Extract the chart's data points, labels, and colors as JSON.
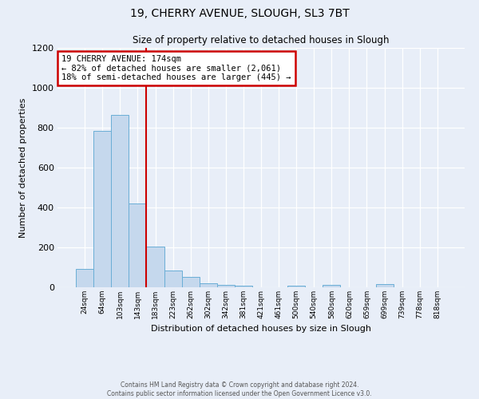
{
  "title": "19, CHERRY AVENUE, SLOUGH, SL3 7BT",
  "subtitle": "Size of property relative to detached houses in Slough",
  "xlabel": "Distribution of detached houses by size in Slough",
  "ylabel": "Number of detached properties",
  "categories": [
    "24sqm",
    "64sqm",
    "103sqm",
    "143sqm",
    "183sqm",
    "223sqm",
    "262sqm",
    "302sqm",
    "342sqm",
    "381sqm",
    "421sqm",
    "461sqm",
    "500sqm",
    "540sqm",
    "580sqm",
    "620sqm",
    "659sqm",
    "699sqm",
    "739sqm",
    "778sqm",
    "818sqm"
  ],
  "values": [
    93,
    783,
    863,
    420,
    203,
    85,
    53,
    20,
    12,
    10,
    0,
    0,
    8,
    0,
    12,
    0,
    0,
    15,
    0,
    0,
    0
  ],
  "bar_color": "#c5d8ed",
  "bar_edge_color": "#6aaed6",
  "vline_pos": 3.5,
  "vline_color": "#cc0000",
  "annotation_title": "19 CHERRY AVENUE: 174sqm",
  "annotation_line1": "← 82% of detached houses are smaller (2,061)",
  "annotation_line2": "18% of semi-detached houses are larger (445) →",
  "annotation_box_color": "#cc0000",
  "ylim": [
    0,
    1200
  ],
  "yticks": [
    0,
    200,
    400,
    600,
    800,
    1000,
    1200
  ],
  "background_color": "#e8eef8",
  "grid_color": "#ffffff",
  "footer_line1": "Contains HM Land Registry data © Crown copyright and database right 2024.",
  "footer_line2": "Contains public sector information licensed under the Open Government Licence v3.0."
}
